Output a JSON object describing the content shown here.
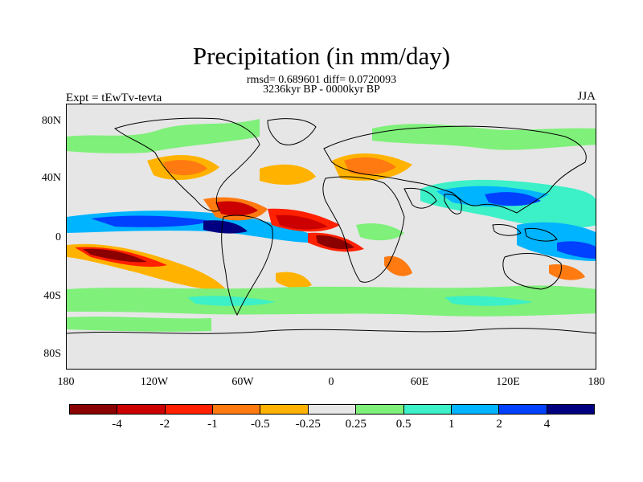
{
  "figure": {
    "title": "Precipitation (in mm/day)",
    "stats": "rmsd= 0.689601 diff= 0.0720093",
    "period": "3236kyr BP - 0000kyr BP",
    "experiment": "Expt = tEwTv-tevta",
    "season": "JJA"
  },
  "axes": {
    "y_ticks": [
      "80N",
      "40N",
      "0",
      "40S",
      "80S"
    ],
    "x_ticks": [
      "180",
      "120W",
      "60W",
      "0",
      "60E",
      "120E",
      "180"
    ]
  },
  "colorbar": {
    "colors": [
      "#8b0000",
      "#cc0000",
      "#ff2000",
      "#ff7a10",
      "#ffb300",
      "#e6e6e6",
      "#7ff07a",
      "#3cf0c8",
      "#00b4ff",
      "#0040ff",
      "#000080"
    ],
    "labels": [
      "-4",
      "-2",
      "-1",
      "-0.5",
      "-0.25",
      "0.25",
      "0.5",
      "1",
      "2",
      "4"
    ]
  }
}
